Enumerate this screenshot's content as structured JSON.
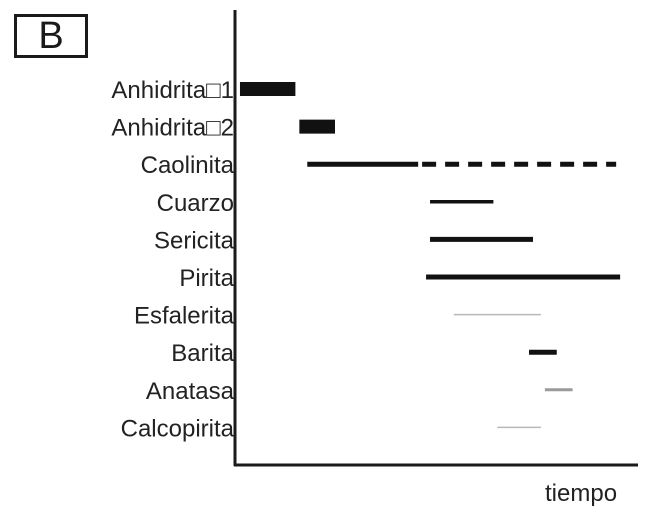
{
  "panel_label": "B",
  "chart_data": {
    "type": "gantt",
    "title": "",
    "xlabel": "tiempo",
    "ylabel": "",
    "xlim": [
      0,
      100
    ],
    "grid": false,
    "legend": "none",
    "categories": [
      "Anhidrita□1",
      "Anhidrita□2",
      "Caolinita",
      "Cuarzo",
      "Sericita",
      "Pirita",
      "Esfalerita",
      "Barita",
      "Anatasa",
      "Calcopirita"
    ],
    "series": [
      {
        "values": [
          {
            "mineral": "Anhidrita□1",
            "segments": [
              {
                "start": 1,
                "end": 15,
                "style": "solid",
                "weight": "thick"
              }
            ]
          },
          {
            "mineral": "Anhidrita□2",
            "segments": [
              {
                "start": 16,
                "end": 25,
                "style": "solid",
                "weight": "thick"
              }
            ]
          },
          {
            "mineral": "Caolinita",
            "segments": [
              {
                "start": 18,
                "end": 46,
                "style": "solid",
                "weight": "medium"
              },
              {
                "start": 47,
                "end": 96,
                "style": "dashed",
                "weight": "medium"
              }
            ]
          },
          {
            "mineral": "Cuarzo",
            "segments": [
              {
                "start": 49,
                "end": 65,
                "style": "solid",
                "weight": "thin"
              }
            ]
          },
          {
            "mineral": "Sericita",
            "segments": [
              {
                "start": 49,
                "end": 75,
                "style": "solid",
                "weight": "medium"
              }
            ]
          },
          {
            "mineral": "Pirita",
            "segments": [
              {
                "start": 48,
                "end": 97,
                "style": "solid",
                "weight": "medium"
              }
            ]
          },
          {
            "mineral": "Esfalerita",
            "segments": [
              {
                "start": 55,
                "end": 77,
                "style": "solid",
                "weight": "hairline"
              }
            ]
          },
          {
            "mineral": "Barita",
            "segments": [
              {
                "start": 74,
                "end": 81,
                "style": "solid",
                "weight": "medium"
              }
            ]
          },
          {
            "mineral": "Anatasa",
            "segments": [
              {
                "start": 78,
                "end": 85,
                "style": "solid",
                "weight": "faint"
              }
            ]
          },
          {
            "mineral": "Calcopirita",
            "segments": [
              {
                "start": 66,
                "end": 77,
                "style": "solid",
                "weight": "hairline"
              }
            ]
          }
        ]
      }
    ]
  },
  "colors": {
    "axis": "#1a1a1a",
    "bar_dark": "#111111",
    "bar_gray": "#9a9a9a",
    "bar_light": "#b8b8b8",
    "text": "#222222"
  }
}
